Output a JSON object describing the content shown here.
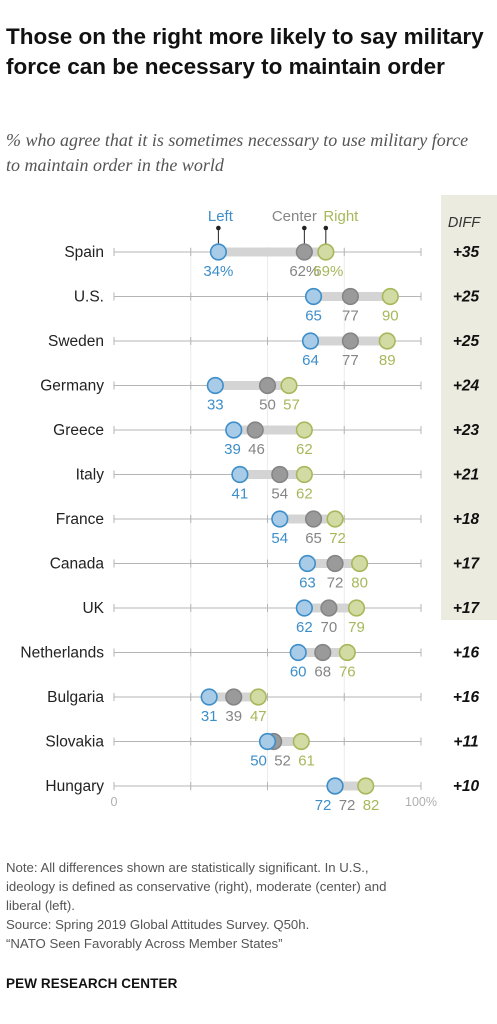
{
  "title": "Those on the right more likely to say military force can be necessary to maintain order",
  "subtitle": "% who agree that it is sometimes necessary to use military force to maintain order in the world",
  "chart_data": {
    "type": "dot",
    "categories": [
      "Spain",
      "U.S.",
      "Sweden",
      "Germany",
      "Greece",
      "Italy",
      "France",
      "Canada",
      "UK",
      "Netherlands",
      "Bulgaria",
      "Slovakia",
      "Hungary"
    ],
    "series": [
      {
        "name": "Left",
        "color": "#3d8ec9",
        "values": [
          34,
          65,
          64,
          33,
          39,
          41,
          54,
          63,
          62,
          60,
          31,
          50,
          72
        ]
      },
      {
        "name": "Center",
        "color": "#858585",
        "values": [
          62,
          77,
          77,
          50,
          46,
          54,
          65,
          72,
          70,
          68,
          39,
          52,
          72
        ]
      },
      {
        "name": "Right",
        "color": "#a6b85a",
        "values": [
          69,
          90,
          89,
          57,
          62,
          62,
          72,
          80,
          79,
          76,
          47,
          61,
          82
        ]
      }
    ],
    "value_labels": [
      [
        "34%",
        "62%",
        "69%"
      ],
      [
        "65",
        "77",
        "90"
      ],
      [
        "64",
        "77",
        "89"
      ],
      [
        "33",
        "50",
        "57"
      ],
      [
        "39",
        "46",
        "62"
      ],
      [
        "41",
        "54",
        "62"
      ],
      [
        "54",
        "65",
        "72"
      ],
      [
        "63",
        "72",
        "80"
      ],
      [
        "62",
        "70",
        "79"
      ],
      [
        "60",
        "68",
        "76"
      ],
      [
        "31",
        "39",
        "47"
      ],
      [
        "50",
        "52",
        "61"
      ],
      [
        "72",
        "72",
        "82"
      ]
    ],
    "diff_header": "DIFF",
    "diff": [
      "+35",
      "+25",
      "+25",
      "+24",
      "+23",
      "+21",
      "+18",
      "+17",
      "+17",
      "+16",
      "+16",
      "+11",
      "+10"
    ],
    "x_tick_labels": [
      "0",
      "100%"
    ],
    "xlim": [
      0,
      100
    ],
    "legend_placement": "top, above first row"
  },
  "notes": [
    "Note: All differences shown are statistically significant. In U.S.,",
    "ideology is defined as conservative (right), moderate (center) and",
    "liberal (left).",
    "Source: Spring 2019 Global Attitudes Survey. Q50h.",
    "“NATO Seen Favorably Across Member States”"
  ],
  "brand": "PEW RESEARCH CENTER",
  "colors": {
    "left": "#3d8ec9",
    "center": "#858585",
    "right": "#a6b85a",
    "left_fill": "#a8cbe8",
    "center_fill": "#9a9a9a",
    "right_fill": "#d2dba3",
    "diff_bg": "#ecebe0",
    "range_bar": "#d4d4d4",
    "axis": "#b5b5b5"
  }
}
